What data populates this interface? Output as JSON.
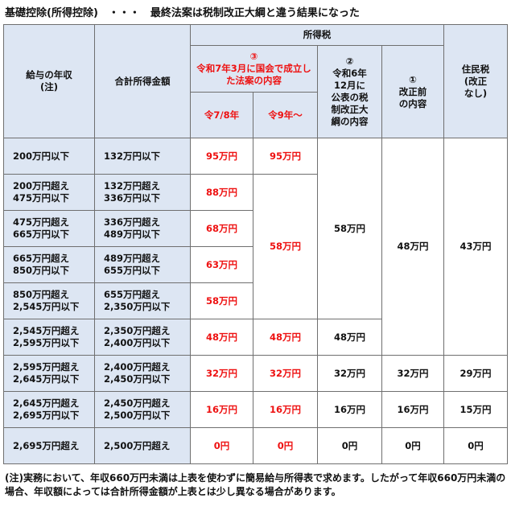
{
  "title": "基礎控除(所得控除)　・・・　最終法案は税制改正大綱と違う結果になった",
  "header": {
    "col_income": "給与の年収\n(注)",
    "col_total": "合計所得金額",
    "group_income_tax": "所得税",
    "col3_num": "③",
    "col3_text": "令和7年3月に国会で成立した法案の内容",
    "col3a": "令7/8年",
    "col3b": "令9年～",
    "col2": "②\n令和6年\n12月に\n公表の税\n制改正大\n綱の内容",
    "col1": "①\n改正前\nの内容",
    "col_resident": "住民税\n(改正\nなし)"
  },
  "rows": [
    {
      "income": "200万円以下",
      "total": "132万円以下",
      "r7": "95万円",
      "r9": "95万円"
    },
    {
      "income": "200万円超え\n475万円以下",
      "total": "132万円超え\n336万円以下",
      "r7": "88万円"
    },
    {
      "income": "475万円超え\n665万円以下",
      "total": "336万円超え\n489万円以下",
      "r7": "68万円"
    },
    {
      "income": "665万円超え\n850万円以下",
      "total": "489万円超え\n655万円以下",
      "r7": "63万円"
    },
    {
      "income": "850万円超え\n2,545万円以下",
      "total": "655万円超え\n2,350万円以下",
      "r7": "58万円"
    },
    {
      "income": "2,545万円超え\n2,595万円以下",
      "total": "2,350万円超え\n2,400万円以下",
      "r7": "48万円",
      "r9": "48万円",
      "kaisei": "48万円"
    },
    {
      "income": "2,595万円超え\n2,645万円以下",
      "total": "2,400万円超え\n2,450万円以下",
      "r7": "32万円",
      "r9": "32万円",
      "kaisei": "32万円",
      "before": "32万円",
      "resident": "29万円"
    },
    {
      "income": "2,645万円超え\n2,695万円以下",
      "total": "2,450万円超え\n2,500万円以下",
      "r7": "16万円",
      "r9": "16万円",
      "kaisei": "16万円",
      "before": "16万円",
      "resident": "15万円"
    },
    {
      "income": "2,695万円超え",
      "total": "2,500万円超え",
      "r7": "0円",
      "r9": "0円",
      "kaisei": "0円",
      "before": "0円",
      "resident": "0円"
    }
  ],
  "merged": {
    "r9_58": "58万円",
    "kaisei_58": "58万円",
    "before_48": "48万円",
    "resident_43": "43万円"
  },
  "note": "(注)実務において、年収660万円未満は上表を使わずに簡易給与所得表で求めます。したがって年収660万円未満の場合、年収額によっては合計所得金額が上表とは少し異なる場合があります。",
  "colors": {
    "header_bg": "#dde6f3",
    "red": "#ee1111",
    "border": "#6f6f6f"
  }
}
